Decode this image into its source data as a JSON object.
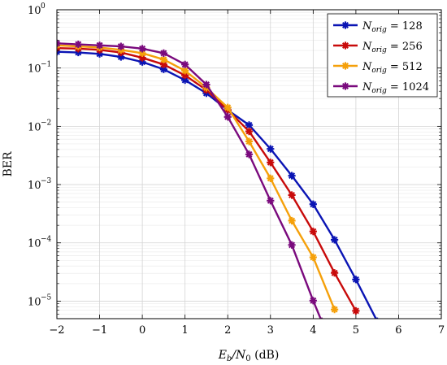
{
  "chart_data": {
    "type": "line",
    "xlabel": "Eb/N0 (dB)",
    "xlabel_parts": {
      "main": "E",
      "sub1": "b",
      "mid": "/N",
      "sub2": "0",
      "unit": " (dB)"
    },
    "ylabel": "BER",
    "xlim": [
      -2,
      7
    ],
    "ylim": [
      5e-06,
      1
    ],
    "yscale": "log",
    "x_ticks": [
      "−2",
      "−1",
      "0",
      "1",
      "2",
      "3",
      "4",
      "5",
      "6",
      "7"
    ],
    "y_ticks": [
      {
        "base": "10",
        "exp": "0"
      },
      {
        "base": "10",
        "exp": "−1"
      },
      {
        "base": "10",
        "exp": "−2"
      },
      {
        "base": "10",
        "exp": "−3"
      },
      {
        "base": "10",
        "exp": "−4"
      },
      {
        "base": "10",
        "exp": "−5"
      }
    ],
    "grid": true,
    "legend_position": "top-right",
    "series": [
      {
        "name": "N_orig = 128",
        "legend": {
          "sym": "N",
          "sub": "orig",
          "eq": " = 128"
        },
        "color": "#0a14b4",
        "x": [
          -2,
          -1.5,
          -1,
          -0.5,
          0,
          0.5,
          1,
          1.5,
          2,
          2.5,
          3,
          3.5,
          4,
          4.5,
          5,
          5.5
        ],
        "y": [
          0.19,
          0.185,
          0.175,
          0.155,
          0.127,
          0.095,
          0.062,
          0.037,
          0.019,
          0.0105,
          0.0041,
          0.00142,
          0.00046,
          0.000113,
          2.35e-05,
          4.5e-06
        ]
      },
      {
        "name": "N_orig = 256",
        "legend": {
          "sym": "N",
          "sub": "orig",
          "eq": " = 256"
        },
        "color": "#c80a0a",
        "x": [
          -2,
          -1.5,
          -1,
          -0.5,
          0,
          0.5,
          1,
          1.5,
          2,
          2.5,
          3,
          3.5,
          4,
          4.5,
          5
        ],
        "y": [
          0.22,
          0.215,
          0.205,
          0.185,
          0.15,
          0.115,
          0.075,
          0.042,
          0.019,
          0.0082,
          0.0024,
          0.00066,
          0.000157,
          3.05e-05,
          6.8e-06
        ]
      },
      {
        "name": "N_orig = 512",
        "legend": {
          "sym": "N",
          "sub": "orig",
          "eq": " = 512"
        },
        "color": "#f5a00a",
        "x": [
          -2,
          -1.5,
          -1,
          -0.5,
          0,
          0.5,
          1,
          1.5,
          2,
          2.5,
          3,
          3.5,
          4,
          4.5
        ],
        "y": [
          0.245,
          0.235,
          0.225,
          0.205,
          0.18,
          0.14,
          0.09,
          0.046,
          0.021,
          0.0055,
          0.00128,
          0.00024,
          5.65e-05,
          7.2e-06
        ]
      },
      {
        "name": "N_orig = 1024",
        "legend": {
          "sym": "N",
          "sub": "orig",
          "eq": " = 1024"
        },
        "color": "#7a0a7d",
        "x": [
          -2,
          -1.5,
          -1,
          -0.5,
          0,
          0.5,
          1,
          1.5,
          2,
          2.5,
          3,
          3.5,
          4,
          4.2
        ],
        "y": [
          0.265,
          0.255,
          0.245,
          0.235,
          0.215,
          0.18,
          0.115,
          0.052,
          0.0145,
          0.0033,
          0.00053,
          9.2e-05,
          1.02e-05,
          4.5e-06
        ]
      }
    ]
  }
}
